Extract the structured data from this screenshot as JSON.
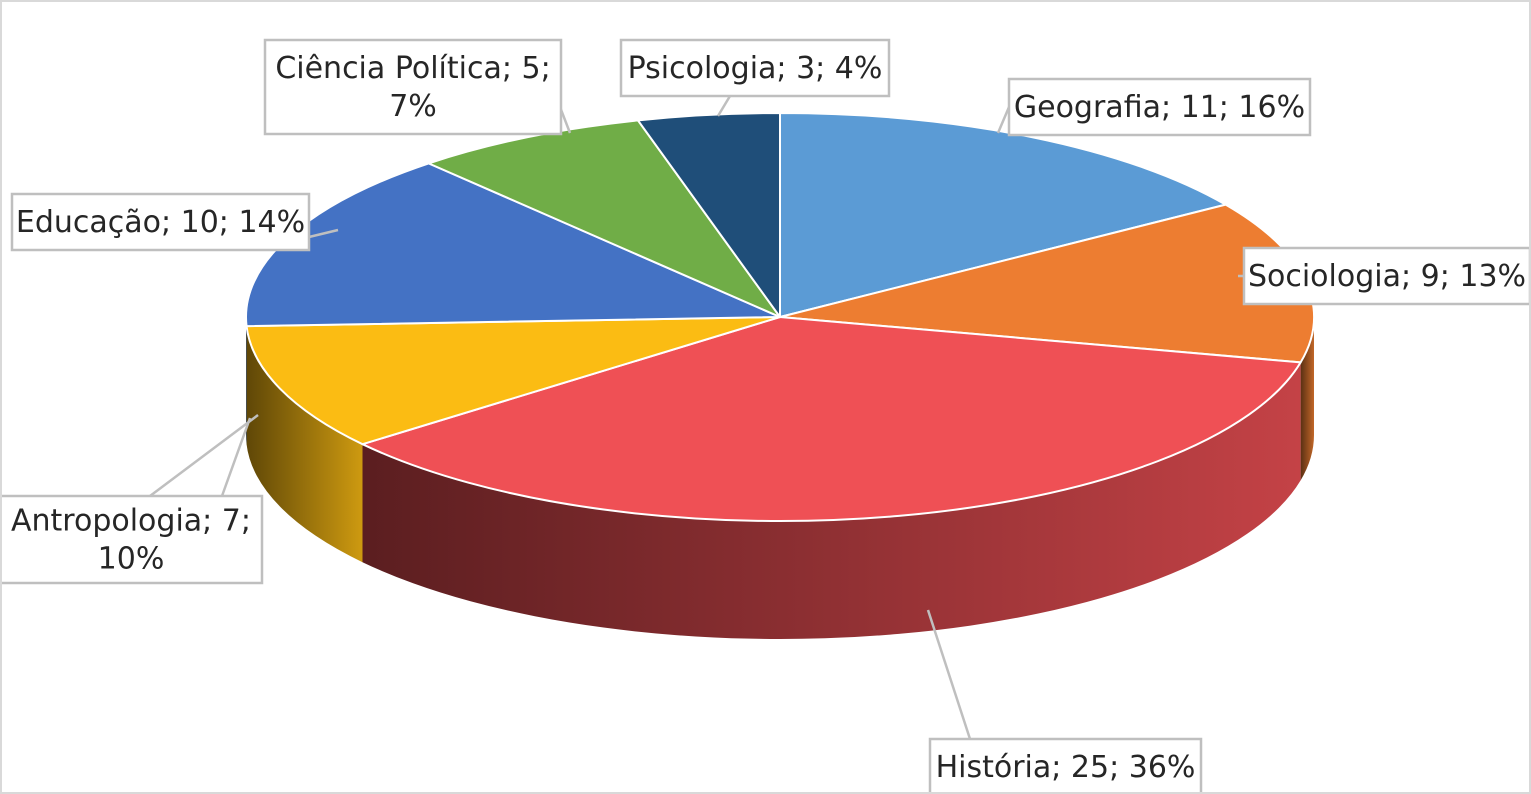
{
  "chart_data": {
    "type": "pie",
    "three_d": true,
    "title": "",
    "label_format": "{name}; {value}; {percent}",
    "slices": [
      {
        "name": "Geografia",
        "value": 11,
        "percent": "16%",
        "color": "#5b9bd5"
      },
      {
        "name": "Sociologia",
        "value": 9,
        "percent": "13%",
        "color": "#ed7d31"
      },
      {
        "name": "História",
        "value": 25,
        "percent": "36%",
        "color": "#ef5055"
      },
      {
        "name": "Antropologia",
        "value": 7,
        "percent": "10%",
        "color": "#fbbc13"
      },
      {
        "name": "Educação",
        "value": 10,
        "percent": "14%",
        "color": "#4472c4"
      },
      {
        "name": "Ciência Política",
        "value": 5,
        "percent": "7%",
        "color": "#70ad47"
      },
      {
        "name": "Psicologia",
        "value": 3,
        "percent": "4%",
        "color": "#1f4e79"
      }
    ],
    "labels": [
      {
        "lines": [
          "Geografia; 11; 16%"
        ]
      },
      {
        "lines": [
          "Sociologia; 9; 13%"
        ]
      },
      {
        "lines": [
          "História; 25; 36%"
        ]
      },
      {
        "lines": [
          "Antropologia; 7;",
          "10%"
        ]
      },
      {
        "lines": [
          "Educação; 10; 14%"
        ]
      },
      {
        "lines": [
          "Ciência Política; 5;",
          "7%"
        ]
      },
      {
        "lines": [
          "Psicologia; 3; 4%"
        ]
      }
    ]
  }
}
